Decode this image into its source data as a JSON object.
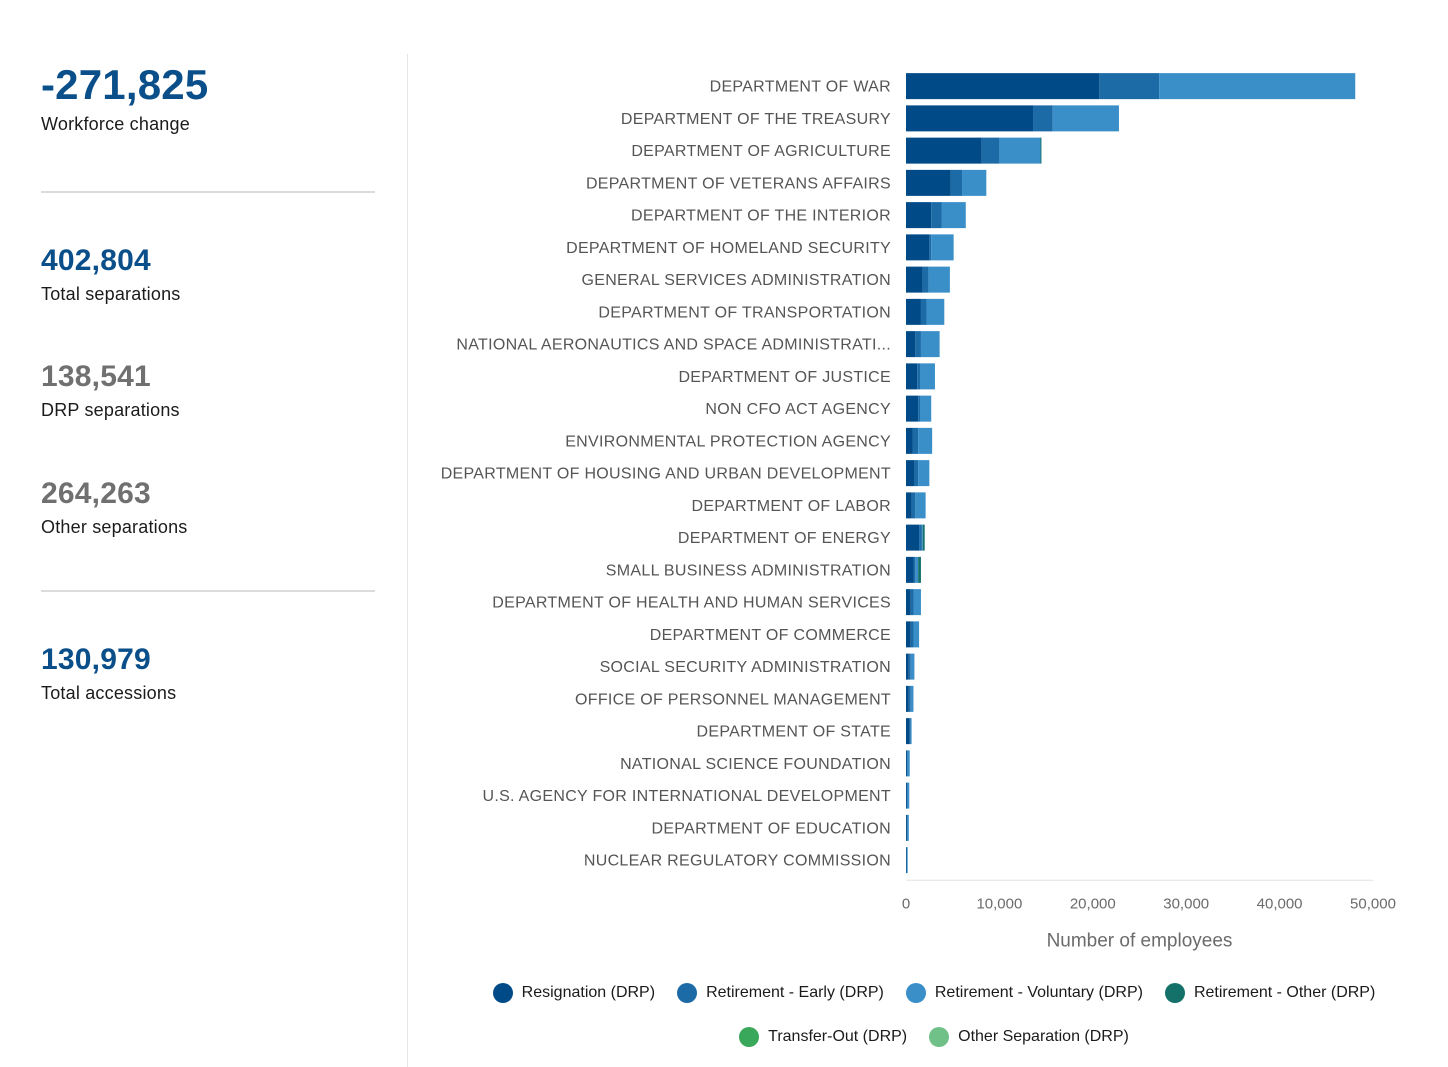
{
  "summary": {
    "workforce_change": {
      "value": "-271,825",
      "label": "Workforce change"
    },
    "total_separations": {
      "value": "402,804",
      "label": "Total separations"
    },
    "drp_separations": {
      "value": "138,541",
      "label": "DRP separations"
    },
    "other_separations": {
      "value": "264,263",
      "label": "Other separations"
    },
    "total_accessions": {
      "value": "130,979",
      "label": "Total accessions"
    }
  },
  "colors": {
    "resignation": "#004b87",
    "retirement_early": "#1c6aa6",
    "retirement_voluntary": "#3a8fc9",
    "retirement_other": "#13716a",
    "transfer_out": "#39a85a",
    "other_separation": "#6fc187",
    "stat_blue": "#0b4f8a",
    "stat_grey": "#707070"
  },
  "chart_data": {
    "type": "bar",
    "orientation": "horizontal",
    "stacked": true,
    "xlabel": "Number of employees",
    "ylabel": "",
    "xlim": [
      0,
      50000
    ],
    "xticks": [
      0,
      10000,
      20000,
      30000,
      40000,
      50000
    ],
    "xtick_labels": [
      "0",
      "10,000",
      "20,000",
      "30,000",
      "40,000",
      "50,000"
    ],
    "legend_position": "bottom",
    "categories": [
      "DEPARTMENT OF WAR",
      "DEPARTMENT OF THE TREASURY",
      "DEPARTMENT OF AGRICULTURE",
      "DEPARTMENT OF VETERANS AFFAIRS",
      "DEPARTMENT OF THE INTERIOR",
      "DEPARTMENT OF HOMELAND SECURITY",
      "GENERAL SERVICES ADMINISTRATION",
      "DEPARTMENT OF TRANSPORTATION",
      "NATIONAL AERONAUTICS AND SPACE ADMINISTRATI...",
      "DEPARTMENT OF JUSTICE",
      "NON CFO ACT AGENCY",
      "ENVIRONMENTAL PROTECTION AGENCY",
      "DEPARTMENT OF HOUSING AND URBAN DEVELOPMENT",
      "DEPARTMENT OF LABOR",
      "DEPARTMENT OF ENERGY",
      "SMALL BUSINESS ADMINISTRATION",
      "DEPARTMENT OF HEALTH AND HUMAN SERVICES",
      "DEPARTMENT OF COMMERCE",
      "SOCIAL SECURITY ADMINISTRATION",
      "OFFICE OF PERSONNEL MANAGEMENT",
      "DEPARTMENT OF STATE",
      "NATIONAL SCIENCE FOUNDATION",
      "U.S. AGENCY FOR INTERNATIONAL DEVELOPMENT",
      "DEPARTMENT OF EDUCATION",
      "NUCLEAR REGULATORY COMMISSION"
    ],
    "series": [
      {
        "name": "Resignation (DRP)",
        "color_key": "resignation",
        "values": [
          20700,
          13600,
          8100,
          4800,
          2700,
          2500,
          1800,
          1600,
          1000,
          1200,
          1300,
          700,
          900,
          600,
          1400,
          800,
          500,
          500,
          300,
          300,
          400,
          100,
          100,
          100,
          50
        ]
      },
      {
        "name": "Retirement - Early (DRP)",
        "color_key": "retirement_early",
        "values": [
          6400,
          2100,
          1900,
          1200,
          1100,
          200,
          600,
          600,
          600,
          300,
          200,
          600,
          400,
          400,
          300,
          200,
          300,
          300,
          200,
          200,
          100,
          50,
          50,
          50,
          30
        ]
      },
      {
        "name": "Retirement - Voluntary (DRP)",
        "color_key": "retirement_voluntary",
        "values": [
          21000,
          7100,
          4400,
          2600,
          2600,
          2400,
          2300,
          1900,
          2000,
          1600,
          1200,
          1500,
          1200,
          1100,
          100,
          300,
          800,
          600,
          400,
          300,
          100,
          250,
          200,
          150,
          100
        ]
      },
      {
        "name": "Retirement - Other (DRP)",
        "color_key": "retirement_other",
        "values": [
          0,
          0,
          100,
          0,
          0,
          0,
          0,
          0,
          0,
          0,
          0,
          0,
          0,
          0,
          200,
          300,
          0,
          0,
          0,
          0,
          0,
          0,
          0,
          0,
          0
        ]
      },
      {
        "name": "Transfer-Out (DRP)",
        "color_key": "transfer_out",
        "values": [
          0,
          0,
          0,
          0,
          0,
          0,
          0,
          0,
          0,
          0,
          0,
          0,
          0,
          0,
          0,
          0,
          0,
          0,
          0,
          0,
          0,
          0,
          0,
          0,
          0
        ]
      },
      {
        "name": "Other Separation (DRP)",
        "color_key": "other_separation",
        "values": [
          0,
          0,
          0,
          0,
          0,
          0,
          0,
          0,
          0,
          0,
          0,
          0,
          0,
          0,
          0,
          0,
          0,
          0,
          0,
          0,
          0,
          0,
          0,
          0,
          0
        ]
      }
    ]
  }
}
